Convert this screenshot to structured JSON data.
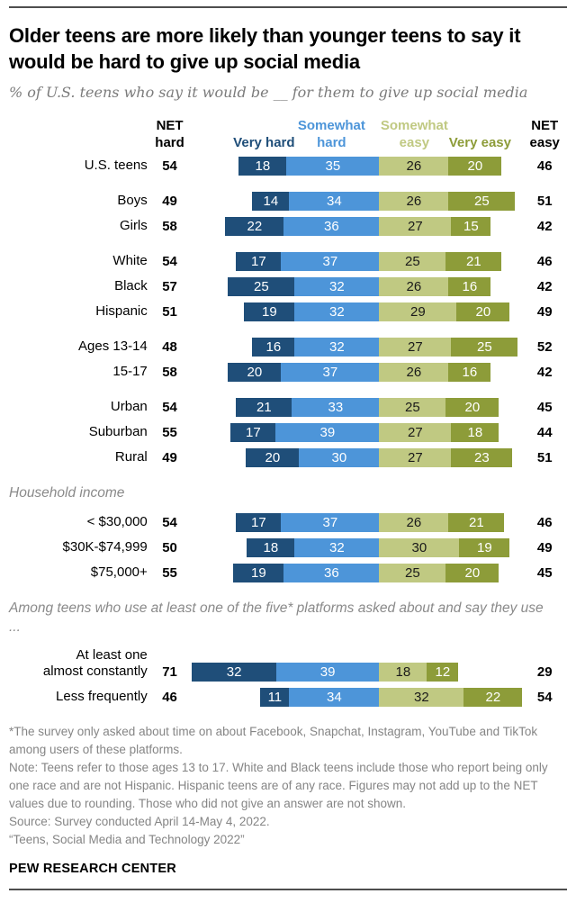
{
  "page": {
    "title": "Older teens are more likely than younger teens to say it would be hard to give up social media",
    "subtitle": "% of U.S. teens who say it would be __ for them to give up social media",
    "footnote_lines": [
      "*The survey only asked about time on about Facebook, Snapchat, Instagram, YouTube and TikTok among users of these platforms.",
      "Note: Teens refer to those ages 13 to 17. White and Black teens include those who report being only one race and are not Hispanic. Hispanic teens are of any race. Figures may not add up to the NET values due to rounding. Those who did not give an answer are not shown.",
      "Source: Survey conducted April 14-May 4, 2022.",
      "“Teens, Social Media and Technology 2022”"
    ],
    "brand": "PEW RESEARCH CENTER"
  },
  "chart_data": {
    "type": "bar",
    "subtype": "diverging-stacked-horizontal",
    "title": "Older teens are more likely than younger teens to say it would be hard to give up social media",
    "unit": "percent",
    "value_range": [
      0,
      100
    ],
    "net_hard_label": "NET hard",
    "net_easy_label": "NET easy",
    "series_labels": [
      "Very hard",
      "Somewhat hard",
      "Somewhat easy",
      "Very easy"
    ],
    "series_colors": [
      "#1f4e79",
      "#4d95d9",
      "#c0c982",
      "#8d9c39"
    ],
    "value_text_colors": [
      "#ffffff",
      "#ffffff",
      "#1a1a1a",
      "#ffffff"
    ],
    "groups": [
      {
        "heading": "",
        "rows": [
          {
            "label": "U.S. teens",
            "net_hard": 54,
            "values": [
              18,
              35,
              26,
              20
            ],
            "net_easy": 46
          }
        ]
      },
      {
        "heading": "",
        "rows": [
          {
            "label": "Boys",
            "net_hard": 49,
            "values": [
              14,
              34,
              26,
              25
            ],
            "net_easy": 51
          },
          {
            "label": "Girls",
            "net_hard": 58,
            "values": [
              22,
              36,
              27,
              15
            ],
            "net_easy": 42
          }
        ]
      },
      {
        "heading": "",
        "rows": [
          {
            "label": "White",
            "net_hard": 54,
            "values": [
              17,
              37,
              25,
              21
            ],
            "net_easy": 46
          },
          {
            "label": "Black",
            "net_hard": 57,
            "values": [
              25,
              32,
              26,
              16
            ],
            "net_easy": 42
          },
          {
            "label": "Hispanic",
            "net_hard": 51,
            "values": [
              19,
              32,
              29,
              20
            ],
            "net_easy": 49
          }
        ]
      },
      {
        "heading": "",
        "rows": [
          {
            "label": "Ages 13-14",
            "net_hard": 48,
            "values": [
              16,
              32,
              27,
              25
            ],
            "net_easy": 52
          },
          {
            "label": "15-17",
            "net_hard": 58,
            "values": [
              20,
              37,
              26,
              16
            ],
            "net_easy": 42
          }
        ]
      },
      {
        "heading": "",
        "rows": [
          {
            "label": "Urban",
            "net_hard": 54,
            "values": [
              21,
              33,
              25,
              20
            ],
            "net_easy": 45
          },
          {
            "label": "Suburban",
            "net_hard": 55,
            "values": [
              17,
              39,
              27,
              18
            ],
            "net_easy": 44
          },
          {
            "label": "Rural",
            "net_hard": 49,
            "values": [
              20,
              30,
              27,
              23
            ],
            "net_easy": 51
          }
        ]
      },
      {
        "heading": "Household income",
        "rows": [
          {
            "label": "< $30,000",
            "net_hard": 54,
            "values": [
              17,
              37,
              26,
              21
            ],
            "net_easy": 46
          },
          {
            "label": "$30K-$74,999",
            "net_hard": 50,
            "values": [
              18,
              32,
              30,
              19
            ],
            "net_easy": 49
          },
          {
            "label": "$75,000+",
            "net_hard": 55,
            "values": [
              19,
              36,
              25,
              20
            ],
            "net_easy": 45
          }
        ]
      },
      {
        "heading": "Among teens who use at least one of the five* platforms asked about and say they use ...",
        "rows": [
          {
            "label": "At least one\nalmost constantly",
            "net_hard": 71,
            "values": [
              32,
              39,
              18,
              12
            ],
            "net_easy": 29
          },
          {
            "label": "Less frequently",
            "net_hard": 46,
            "values": [
              11,
              34,
              32,
              22
            ],
            "net_easy": 54
          }
        ]
      }
    ]
  }
}
